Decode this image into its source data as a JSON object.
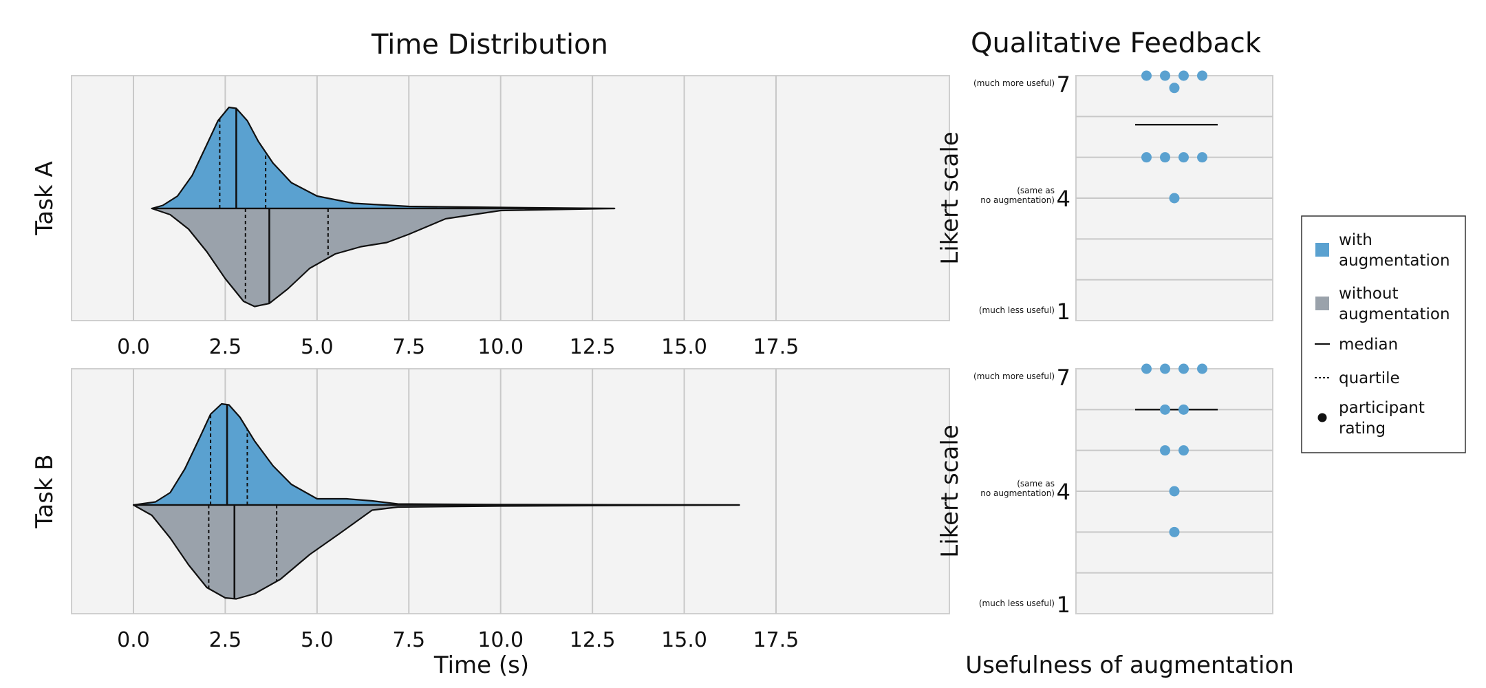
{
  "chart_data": [
    {
      "type": "violin",
      "title": "Time Distribution",
      "xlabel": "Time (s)",
      "xlim": [
        -1.4,
        18.5
      ],
      "xticks": [
        0.0,
        2.5,
        5.0,
        7.5,
        10.0,
        12.5,
        15.0,
        17.5
      ],
      "xtick_labels": [
        "0.0",
        "2.5",
        "5.0",
        "7.5",
        "10.0",
        "12.5",
        "15.0",
        "17.5"
      ],
      "grid": true,
      "colors": {
        "with": "#5aa1d0",
        "without": "#9aa2ab",
        "panel_bg": "#f3f3f3",
        "grid": "#c8c8c8"
      },
      "panels": [
        {
          "label": "Task A",
          "with": {
            "min": 0.5,
            "max": 13.1,
            "q1": 2.35,
            "median": 2.8,
            "q3": 3.6,
            "density": [
              [
                0.5,
                0.0
              ],
              [
                0.8,
                0.03
              ],
              [
                1.2,
                0.12
              ],
              [
                1.6,
                0.32
              ],
              [
                2.0,
                0.62
              ],
              [
                2.3,
                0.85
              ],
              [
                2.6,
                0.98
              ],
              [
                2.8,
                0.97
              ],
              [
                3.1,
                0.85
              ],
              [
                3.4,
                0.65
              ],
              [
                3.8,
                0.44
              ],
              [
                4.3,
                0.25
              ],
              [
                5.0,
                0.12
              ],
              [
                6.0,
                0.05
              ],
              [
                7.5,
                0.02
              ],
              [
                10.0,
                0.01
              ],
              [
                13.1,
                0.0
              ]
            ]
          },
          "without": {
            "min": 0.5,
            "max": 13.1,
            "q1": 3.05,
            "median": 3.7,
            "q3": 5.3,
            "density": [
              [
                0.5,
                0.0
              ],
              [
                1.0,
                0.06
              ],
              [
                1.5,
                0.2
              ],
              [
                2.0,
                0.42
              ],
              [
                2.5,
                0.68
              ],
              [
                3.0,
                0.9
              ],
              [
                3.3,
                0.95
              ],
              [
                3.7,
                0.92
              ],
              [
                4.2,
                0.78
              ],
              [
                4.8,
                0.58
              ],
              [
                5.5,
                0.44
              ],
              [
                6.2,
                0.37
              ],
              [
                6.9,
                0.33
              ],
              [
                7.5,
                0.25
              ],
              [
                8.5,
                0.1
              ],
              [
                10.0,
                0.02
              ],
              [
                13.1,
                0.0
              ]
            ]
          }
        },
        {
          "label": "Task B",
          "with": {
            "min": 0.0,
            "max": 16.5,
            "q1": 2.1,
            "median": 2.55,
            "q3": 3.1,
            "density": [
              [
                0.0,
                0.0
              ],
              [
                0.6,
                0.03
              ],
              [
                1.0,
                0.12
              ],
              [
                1.4,
                0.35
              ],
              [
                1.8,
                0.65
              ],
              [
                2.1,
                0.88
              ],
              [
                2.4,
                0.98
              ],
              [
                2.6,
                0.97
              ],
              [
                2.9,
                0.85
              ],
              [
                3.3,
                0.62
              ],
              [
                3.8,
                0.38
              ],
              [
                4.3,
                0.2
              ],
              [
                5.0,
                0.06
              ],
              [
                5.8,
                0.06
              ],
              [
                6.5,
                0.04
              ],
              [
                7.2,
                0.01
              ],
              [
                10.0,
                0.005
              ],
              [
                16.5,
                0.0
              ]
            ]
          },
          "without": {
            "min": 0.0,
            "max": 16.5,
            "q1": 2.05,
            "median": 2.75,
            "q3": 3.9,
            "density": [
              [
                0.0,
                0.0
              ],
              [
                0.5,
                0.1
              ],
              [
                1.0,
                0.32
              ],
              [
                1.5,
                0.58
              ],
              [
                2.0,
                0.8
              ],
              [
                2.5,
                0.9
              ],
              [
                2.8,
                0.91
              ],
              [
                3.3,
                0.86
              ],
              [
                4.0,
                0.72
              ],
              [
                4.8,
                0.48
              ],
              [
                5.6,
                0.28
              ],
              [
                6.5,
                0.05
              ],
              [
                7.2,
                0.02
              ],
              [
                10.0,
                0.01
              ],
              [
                16.5,
                0.0
              ]
            ]
          }
        }
      ]
    },
    {
      "type": "dot",
      "title": "Qualitative Feedback",
      "xlabel": "Usefulness of augmentation",
      "ylabel": "Likert scale",
      "ylim": [
        1,
        7
      ],
      "yticks": [
        1,
        4,
        7
      ],
      "ytick_labels": {
        "7": {
          "num": "7",
          "note": [
            "(much more useful)"
          ]
        },
        "4": {
          "num": "4",
          "note": [
            "(same as",
            "no augmentation)"
          ]
        },
        "1": {
          "num": "1",
          "note": [
            "(much less useful)"
          ]
        }
      },
      "panels": [
        {
          "label": "Task A",
          "median": 5.8,
          "ratings": [
            7,
            7,
            7,
            7,
            6.7,
            5,
            5,
            5,
            5,
            4
          ]
        },
        {
          "label": "Task B",
          "median": 6.0,
          "ratings": [
            7,
            7,
            7,
            7,
            6,
            6,
            5,
            5,
            4,
            3
          ]
        }
      ]
    }
  ],
  "legend": {
    "items": [
      {
        "label": [
          "with",
          "augmentation"
        ],
        "kind": "square",
        "color": "#5aa1d0"
      },
      {
        "label": [
          "without",
          "augmentation"
        ],
        "kind": "square",
        "color": "#9aa2ab"
      },
      {
        "label": [
          "median"
        ],
        "kind": "solid-line",
        "color": "#111111"
      },
      {
        "label": [
          "quartile"
        ],
        "kind": "dashed-line",
        "color": "#111111"
      },
      {
        "label": [
          "participant",
          "rating"
        ],
        "kind": "dot",
        "color": "#111111"
      }
    ]
  }
}
